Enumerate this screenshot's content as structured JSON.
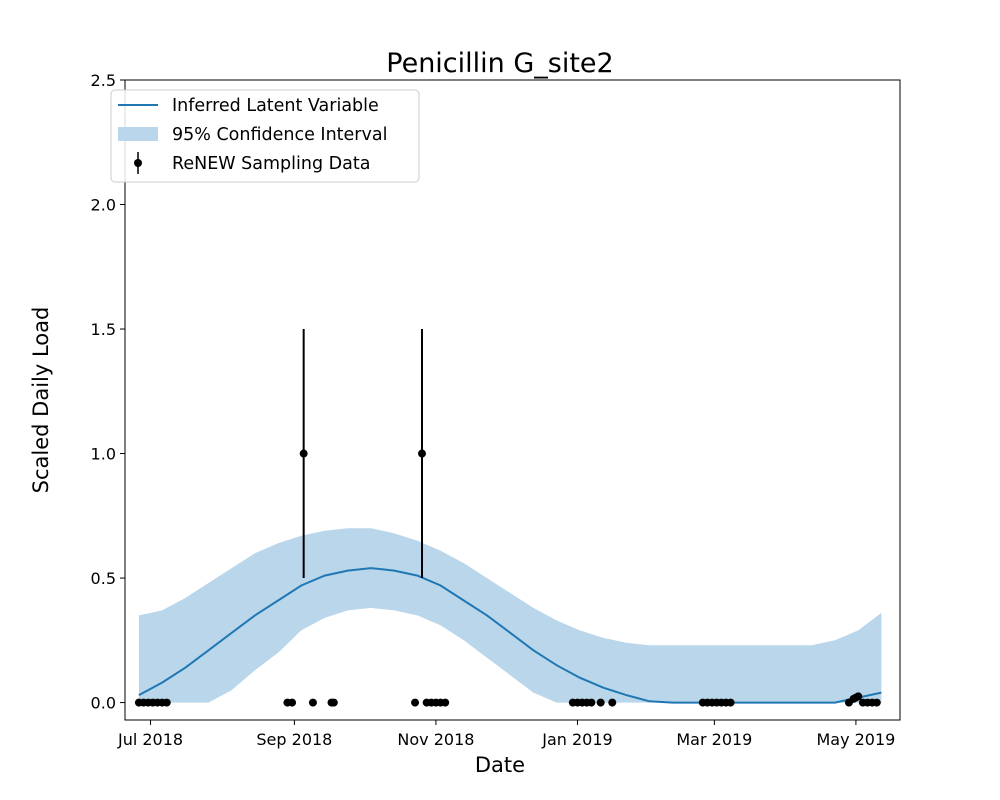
{
  "chart_data": {
    "type": "line",
    "title": "Penicillin G_site2",
    "xlabel": "Date",
    "ylabel": "Scaled Daily Load",
    "xlim": [
      "2018-06-20",
      "2019-05-20"
    ],
    "ylim": [
      -0.07,
      2.5
    ],
    "x_ticks": [
      {
        "date": "2018-07-01",
        "label": "Jul 2018"
      },
      {
        "date": "2018-09-01",
        "label": "Sep 2018"
      },
      {
        "date": "2018-11-01",
        "label": "Nov 2018"
      },
      {
        "date": "2019-01-01",
        "label": "Jan 2019"
      },
      {
        "date": "2019-03-01",
        "label": "Mar 2019"
      },
      {
        "date": "2019-05-01",
        "label": "May 2019"
      }
    ],
    "y_ticks": [
      {
        "value": 0.0,
        "label": "0.0"
      },
      {
        "value": 0.5,
        "label": "0.5"
      },
      {
        "value": 1.0,
        "label": "1.0"
      },
      {
        "value": 1.5,
        "label": "1.5"
      },
      {
        "value": 2.0,
        "label": "2.0"
      },
      {
        "value": 2.5,
        "label": "2.5"
      }
    ],
    "grid": false,
    "legend_position": "top-left",
    "legend": [
      {
        "label": "Inferred Latent Variable",
        "kind": "line"
      },
      {
        "label": "95% Confidence Interval",
        "kind": "band"
      },
      {
        "label": "ReNEW Sampling Data",
        "kind": "errorbar"
      }
    ],
    "colors": {
      "line": "#1f77b4",
      "band": "#bad6ea",
      "points": "#000000"
    },
    "latent": {
      "x": [
        "2018-06-26",
        "2018-07-06",
        "2018-07-16",
        "2018-07-26",
        "2018-08-05",
        "2018-08-15",
        "2018-08-25",
        "2018-09-04",
        "2018-09-14",
        "2018-09-24",
        "2018-10-04",
        "2018-10-14",
        "2018-10-24",
        "2018-11-03",
        "2018-11-13",
        "2018-11-23",
        "2018-12-03",
        "2018-12-13",
        "2018-12-23",
        "2019-01-02",
        "2019-01-12",
        "2019-01-22",
        "2019-02-01",
        "2019-02-11",
        "2019-02-21",
        "2019-03-03",
        "2019-03-13",
        "2019-03-23",
        "2019-04-02",
        "2019-04-12",
        "2019-04-22",
        "2019-05-02",
        "2019-05-12"
      ],
      "y": [
        0.03,
        0.08,
        0.14,
        0.21,
        0.28,
        0.35,
        0.41,
        0.47,
        0.51,
        0.53,
        0.54,
        0.53,
        0.51,
        0.47,
        0.41,
        0.35,
        0.28,
        0.21,
        0.15,
        0.1,
        0.06,
        0.03,
        0.005,
        0.0,
        0.0,
        0.0,
        0.0,
        0.0,
        0.0,
        0.0,
        0.0,
        0.02,
        0.04
      ],
      "lower": [
        0.0,
        0.0,
        0.0,
        0.0,
        0.05,
        0.13,
        0.2,
        0.29,
        0.34,
        0.37,
        0.38,
        0.37,
        0.35,
        0.31,
        0.25,
        0.18,
        0.11,
        0.04,
        0.0,
        0.0,
        0.0,
        0.0,
        0.0,
        0.0,
        0.0,
        0.0,
        0.0,
        0.0,
        0.0,
        0.0,
        0.0,
        0.0,
        0.0
      ],
      "upper": [
        0.35,
        0.37,
        0.42,
        0.48,
        0.54,
        0.6,
        0.64,
        0.67,
        0.69,
        0.7,
        0.7,
        0.68,
        0.65,
        0.61,
        0.56,
        0.5,
        0.44,
        0.38,
        0.33,
        0.29,
        0.26,
        0.24,
        0.23,
        0.23,
        0.23,
        0.23,
        0.23,
        0.23,
        0.23,
        0.23,
        0.25,
        0.29,
        0.36
      ]
    },
    "samples": [
      {
        "x": "2018-06-26",
        "y": 0.0
      },
      {
        "x": "2018-06-28",
        "y": 0.0
      },
      {
        "x": "2018-06-30",
        "y": 0.0
      },
      {
        "x": "2018-07-02",
        "y": 0.0
      },
      {
        "x": "2018-07-04",
        "y": 0.0
      },
      {
        "x": "2018-07-06",
        "y": 0.0
      },
      {
        "x": "2018-07-08",
        "y": 0.0
      },
      {
        "x": "2018-08-29",
        "y": 0.0
      },
      {
        "x": "2018-08-31",
        "y": 0.0
      },
      {
        "x": "2018-09-05",
        "y": 1.0,
        "err_low": 0.5,
        "err_high": 1.5
      },
      {
        "x": "2018-09-09",
        "y": 0.0
      },
      {
        "x": "2018-09-17",
        "y": 0.0
      },
      {
        "x": "2018-09-18",
        "y": 0.0
      },
      {
        "x": "2018-10-23",
        "y": 0.0
      },
      {
        "x": "2018-10-26",
        "y": 1.0,
        "err_low": 0.5,
        "err_high": 1.5
      },
      {
        "x": "2018-10-28",
        "y": 0.0
      },
      {
        "x": "2018-10-30",
        "y": 0.0
      },
      {
        "x": "2018-11-01",
        "y": 0.0
      },
      {
        "x": "2018-11-03",
        "y": 0.0
      },
      {
        "x": "2018-11-05",
        "y": 0.0
      },
      {
        "x": "2018-12-30",
        "y": 0.0
      },
      {
        "x": "2019-01-01",
        "y": 0.0
      },
      {
        "x": "2019-01-03",
        "y": 0.0
      },
      {
        "x": "2019-01-05",
        "y": 0.0
      },
      {
        "x": "2019-01-07",
        "y": 0.0
      },
      {
        "x": "2019-01-11",
        "y": 0.0
      },
      {
        "x": "2019-01-16",
        "y": 0.0
      },
      {
        "x": "2019-02-24",
        "y": 0.0
      },
      {
        "x": "2019-02-26",
        "y": 0.0
      },
      {
        "x": "2019-02-28",
        "y": 0.0
      },
      {
        "x": "2019-03-02",
        "y": 0.0
      },
      {
        "x": "2019-03-04",
        "y": 0.0
      },
      {
        "x": "2019-03-06",
        "y": 0.0
      },
      {
        "x": "2019-03-08",
        "y": 0.0
      },
      {
        "x": "2019-04-28",
        "y": 0.0
      },
      {
        "x": "2019-04-30",
        "y": 0.015
      },
      {
        "x": "2019-05-01",
        "y": 0.02
      },
      {
        "x": "2019-05-02",
        "y": 0.025
      },
      {
        "x": "2019-05-04",
        "y": 0.0
      },
      {
        "x": "2019-05-06",
        "y": 0.0
      },
      {
        "x": "2019-05-08",
        "y": 0.0
      },
      {
        "x": "2019-05-10",
        "y": 0.0
      }
    ]
  }
}
